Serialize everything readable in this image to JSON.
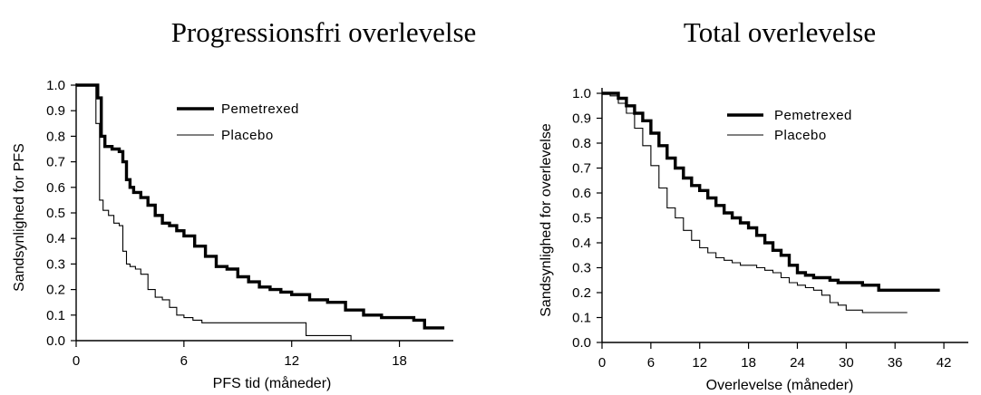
{
  "chart_data": [
    {
      "type": "line",
      "title": "Progressionsfri overlevelse",
      "xlabel": "PFS tid (måneder)",
      "ylabel": "Sandsynlighed for PFS",
      "xlim": [
        0,
        21
      ],
      "ylim": [
        0,
        1
      ],
      "xticks": [
        0,
        6,
        12,
        18
      ],
      "xtick_labels": [
        "0",
        "6",
        "12",
        "18"
      ],
      "yticks": [
        0,
        0.1,
        0.2,
        0.3,
        0.4,
        0.5,
        0.6,
        0.7,
        0.8,
        0.9,
        1.0
      ],
      "ytick_labels": [
        "0.0",
        "0.1",
        "0.2",
        "0.3",
        "0.4",
        "0.5",
        "0.6",
        "0.7",
        "0.8",
        "0.9",
        "1.0"
      ],
      "legend_position": "top-right",
      "series": [
        {
          "name": "Pemetrexed",
          "style": "thick",
          "x": [
            0,
            0.8,
            1.2,
            1.4,
            1.6,
            2.0,
            2.4,
            2.6,
            2.8,
            3.0,
            3.2,
            3.6,
            4.0,
            4.4,
            4.8,
            5.2,
            5.6,
            6.0,
            6.6,
            7.2,
            7.8,
            8.4,
            9.0,
            9.6,
            10.2,
            10.8,
            11.4,
            12.0,
            13.0,
            14.0,
            15.0,
            16.0,
            17.0,
            18.0,
            18.8,
            19.4,
            20.0,
            20.5
          ],
          "y": [
            1.0,
            1.0,
            0.95,
            0.8,
            0.76,
            0.75,
            0.74,
            0.7,
            0.63,
            0.6,
            0.58,
            0.56,
            0.53,
            0.49,
            0.46,
            0.45,
            0.43,
            0.41,
            0.37,
            0.33,
            0.29,
            0.28,
            0.25,
            0.23,
            0.21,
            0.2,
            0.19,
            0.18,
            0.16,
            0.15,
            0.12,
            0.1,
            0.09,
            0.09,
            0.08,
            0.05,
            0.05,
            0.05
          ]
        },
        {
          "name": "Placebo",
          "style": "thin",
          "x": [
            0,
            0.8,
            1.1,
            1.3,
            1.5,
            1.8,
            2.1,
            2.4,
            2.6,
            2.8,
            3.0,
            3.3,
            3.6,
            4.0,
            4.4,
            4.8,
            5.2,
            5.6,
            6.0,
            6.5,
            7.0,
            8.0,
            9.0,
            10.0,
            11.0,
            12.0,
            12.8,
            13.5,
            14.5,
            15.3
          ],
          "y": [
            1.0,
            1.0,
            0.85,
            0.55,
            0.51,
            0.49,
            0.46,
            0.45,
            0.35,
            0.3,
            0.29,
            0.28,
            0.26,
            0.2,
            0.17,
            0.16,
            0.13,
            0.1,
            0.09,
            0.08,
            0.07,
            0.07,
            0.07,
            0.07,
            0.07,
            0.07,
            0.02,
            0.02,
            0.02,
            0.0
          ]
        }
      ]
    },
    {
      "type": "line",
      "title": "Total overlevelse",
      "xlabel": "Overlevelse (måneder)",
      "ylabel": "Sandsynlighed for overlevelse",
      "xlim": [
        0,
        45
      ],
      "ylim": [
        0,
        1
      ],
      "xticks": [
        0,
        6,
        12,
        18,
        24,
        30,
        36,
        42
      ],
      "xtick_labels": [
        "0",
        "6",
        "12",
        "18",
        "24",
        "30",
        "36",
        "42"
      ],
      "yticks": [
        0,
        0.1,
        0.2,
        0.3,
        0.4,
        0.5,
        0.6,
        0.7,
        0.8,
        0.9,
        1.0
      ],
      "ytick_labels": [
        "0.0",
        "0.1",
        "0.2",
        "0.3",
        "0.4",
        "0.5",
        "0.6",
        "0.7",
        "0.8",
        "0.9",
        "1.0"
      ],
      "legend_position": "top-right",
      "series": [
        {
          "name": "Pemetrexed",
          "style": "thick",
          "x": [
            0,
            1,
            2,
            3,
            4,
            5,
            6,
            7,
            8,
            9,
            10,
            11,
            12,
            13,
            14,
            15,
            16,
            17,
            18,
            19,
            20,
            21,
            22,
            23,
            24,
            25,
            26,
            27,
            28,
            29,
            30,
            32,
            34,
            36,
            38,
            40,
            41.5
          ],
          "y": [
            1.0,
            1.0,
            0.98,
            0.95,
            0.92,
            0.89,
            0.84,
            0.79,
            0.74,
            0.7,
            0.66,
            0.63,
            0.61,
            0.58,
            0.55,
            0.52,
            0.5,
            0.48,
            0.46,
            0.43,
            0.4,
            0.37,
            0.35,
            0.31,
            0.28,
            0.27,
            0.26,
            0.26,
            0.25,
            0.24,
            0.24,
            0.23,
            0.21,
            0.21,
            0.21,
            0.21,
            0.21
          ]
        },
        {
          "name": "Placebo",
          "style": "thin",
          "x": [
            0,
            1,
            2,
            3,
            4,
            5,
            6,
            7,
            8,
            9,
            10,
            11,
            12,
            13,
            14,
            15,
            16,
            17,
            18,
            19,
            20,
            21,
            22,
            23,
            24,
            25,
            26,
            27,
            28,
            29,
            30,
            32,
            34,
            36,
            37.5
          ],
          "y": [
            1.0,
            0.99,
            0.96,
            0.92,
            0.86,
            0.79,
            0.71,
            0.62,
            0.54,
            0.5,
            0.45,
            0.41,
            0.38,
            0.36,
            0.34,
            0.33,
            0.32,
            0.31,
            0.31,
            0.3,
            0.29,
            0.28,
            0.26,
            0.24,
            0.23,
            0.22,
            0.21,
            0.19,
            0.16,
            0.15,
            0.13,
            0.12,
            0.12,
            0.12,
            0.12
          ]
        }
      ]
    }
  ]
}
